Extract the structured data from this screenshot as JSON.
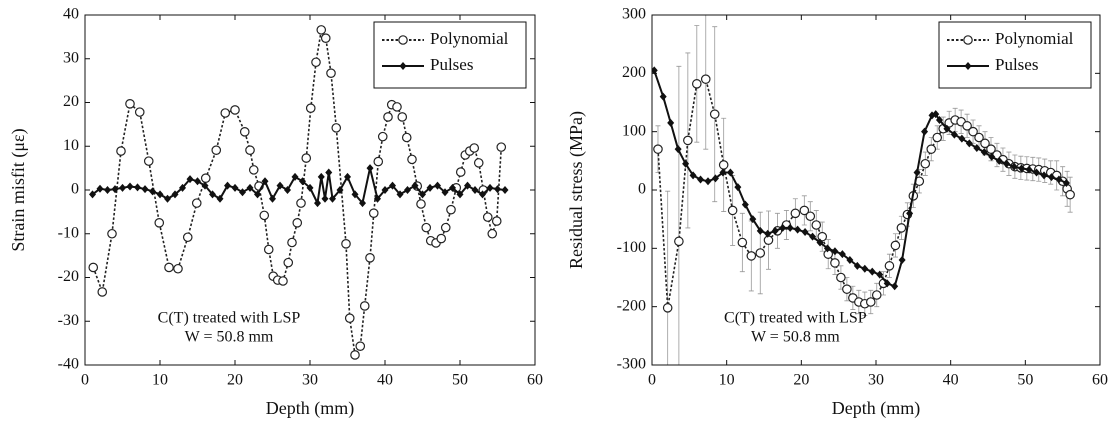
{
  "chart_data": [
    {
      "type": "line",
      "x_label": "Depth (mm)",
      "y_label": "Strain misfit (με)",
      "annotations": [
        "C(T) treated with LSP",
        "W = 50.8 mm"
      ],
      "xlim": [
        0,
        60
      ],
      "xticks": [
        0,
        10,
        20,
        30,
        40,
        50,
        60
      ],
      "ylim": [
        -40,
        40
      ],
      "yticks": [
        -40,
        -30,
        -20,
        -10,
        0,
        10,
        20,
        30,
        40
      ],
      "legend": "upper right",
      "series": [
        {
          "name": "Polynomial",
          "color": "#222222",
          "line_style": "dotted",
          "marker": "circle",
          "x": [
            1.1,
            2.3,
            3.6,
            4.8,
            6,
            7.3,
            8.5,
            9.9,
            11.2,
            12.4,
            13.7,
            14.9,
            16.1,
            17.5,
            18.7,
            20,
            21.3,
            22,
            22.5,
            23.2,
            23.9,
            24.5,
            25.1,
            25.7,
            26.4,
            27.1,
            27.6,
            28.3,
            28.8,
            29.5,
            30.1,
            30.8,
            31.5,
            32.1,
            32.8,
            33.5,
            34.8,
            35.3,
            36,
            36.7,
            37.3,
            38,
            38.5,
            39.1,
            39.7,
            40.4,
            40.9,
            41.6,
            42.3,
            42.9,
            43.6,
            44.3,
            44.8,
            45.5,
            46.1,
            46.8,
            47.5,
            48.1,
            48.8,
            49.5,
            50.1,
            50.7,
            51.3,
            51.9,
            52.5,
            53.1,
            53.7,
            54.3,
            54.9,
            55.5
          ],
          "values": [
            -17.7,
            -23.3,
            -10,
            8.9,
            19.7,
            17.8,
            6.6,
            -7.5,
            -17.7,
            -18,
            -10.8,
            -3,
            2.7,
            9.1,
            17.6,
            18.3,
            13.3,
            9.1,
            4.6,
            0.9,
            -5.8,
            -13.6,
            -19.7,
            -20.6,
            -20.8,
            -16.6,
            -12,
            -7.5,
            -3,
            7.3,
            18.7,
            29.2,
            36.6,
            34.7,
            26.7,
            14.2,
            -12.3,
            -29.3,
            -37.7,
            -35.7,
            -26.5,
            -15.5,
            -5.3,
            6.5,
            12.2,
            16.7,
            19.5,
            19,
            16.7,
            12,
            7,
            0.9,
            -3.2,
            -8.6,
            -11.6,
            -12.1,
            -11.1,
            -8.6,
            -4.5,
            0.5,
            4.1,
            8,
            8.9,
            9.6,
            6.2,
            0,
            -6.2,
            -10,
            -7.1,
            9.8
          ]
        },
        {
          "name": "Pulses",
          "color": "#111111",
          "line_style": "solid",
          "marker": "diamond",
          "x": [
            1,
            2,
            3,
            4,
            5,
            6,
            7,
            8,
            9,
            10,
            11,
            12,
            13,
            14,
            15,
            16,
            17,
            18,
            19,
            20,
            21,
            22,
            23,
            24,
            25,
            26,
            27,
            28,
            29,
            30,
            31,
            31.5,
            32,
            32.5,
            33,
            34,
            35,
            36,
            37,
            38,
            39,
            40,
            41,
            42,
            43,
            44,
            45,
            46,
            47,
            48,
            49,
            50,
            51,
            52,
            53,
            54,
            55,
            56
          ],
          "values": [
            -1,
            0.3,
            0,
            0.2,
            0.5,
            0.8,
            0.6,
            0.2,
            -0.3,
            -1,
            -2,
            -1,
            0.5,
            2.5,
            2,
            1,
            -1,
            -2,
            1,
            0.5,
            -0.5,
            0.5,
            -1,
            2,
            -2,
            1,
            0,
            3,
            2,
            0.5,
            -3,
            3,
            -2,
            4,
            -2,
            0,
            3,
            -1,
            -3,
            5,
            -2,
            0,
            1,
            -1,
            0,
            1,
            -1,
            0.5,
            1,
            -0.5,
            0.5,
            -1,
            1,
            0,
            -1,
            0.5,
            0.2,
            0
          ]
        }
      ]
    },
    {
      "type": "line",
      "x_label": "Depth (mm)",
      "y_label": "Residual stress (MPa)",
      "annotations": [
        "C(T) treated with LSP",
        "W = 50.8 mm"
      ],
      "xlim": [
        0,
        60
      ],
      "xticks": [
        0,
        10,
        20,
        30,
        40,
        50,
        60
      ],
      "ylim": [
        -300,
        300
      ],
      "yticks": [
        -300,
        -200,
        -100,
        0,
        100,
        200,
        300
      ],
      "legend": "upper right",
      "series": [
        {
          "name": "Polynomial",
          "color": "#222222",
          "line_style": "dotted",
          "marker": "circle",
          "error_color": "#999999",
          "x": [
            0.8,
            2.1,
            3.6,
            4.8,
            6,
            7.2,
            8.4,
            9.6,
            10.8,
            12.1,
            13.3,
            14.5,
            15.6,
            16.8,
            18,
            19.2,
            20.4,
            21.2,
            22,
            22.8,
            23.6,
            24.5,
            25.3,
            26.1,
            26.9,
            27.7,
            28.5,
            29.3,
            30.1,
            31,
            31.8,
            32.6,
            33.4,
            34.2,
            35,
            35.8,
            36.6,
            37.4,
            38.2,
            39,
            39.8,
            40.6,
            41.4,
            42.2,
            43,
            43.8,
            44.6,
            45.4,
            46.2,
            47,
            47.8,
            48.6,
            49.4,
            50.2,
            51,
            51.8,
            52.6,
            53.4,
            54.2,
            55,
            55.6,
            56
          ],
          "values": [
            70,
            -202,
            -88,
            85,
            182,
            190,
            130,
            43,
            -35,
            -90,
            -113,
            -108,
            -86,
            -70,
            -60,
            -40,
            -35,
            -45,
            -60,
            -80,
            -110,
            -125,
            -150,
            -170,
            -185,
            -192,
            -195,
            -192,
            -180,
            -160,
            -130,
            -95,
            -65,
            -42,
            -10,
            15,
            45,
            70,
            90,
            105,
            115,
            120,
            117,
            110,
            100,
            90,
            80,
            70,
            60,
            52,
            45,
            40,
            38,
            37,
            36,
            35,
            33,
            30,
            25,
            15,
            2,
            -8
          ],
          "errors": [
            40,
            200,
            300,
            150,
            100,
            120,
            150,
            80,
            60,
            50,
            60,
            70,
            50,
            30,
            25,
            25,
            25,
            25,
            25,
            25,
            25,
            20,
            20,
            20,
            20,
            20,
            20,
            20,
            20,
            20,
            20,
            20,
            20,
            20,
            20,
            20,
            20,
            20,
            20,
            20,
            20,
            20,
            20,
            20,
            20,
            20,
            20,
            20,
            20,
            20,
            20,
            20,
            20,
            20,
            20,
            20,
            20,
            20,
            25,
            25,
            30,
            30
          ]
        },
        {
          "name": "Pulses",
          "color": "#111111",
          "line_style": "solid",
          "marker": "diamond",
          "x": [
            0.3,
            1.5,
            2.5,
            3.5,
            4.5,
            5.5,
            6.5,
            7.5,
            8.5,
            9.5,
            10.5,
            11.5,
            12.5,
            13.5,
            14.5,
            15.5,
            16.5,
            17.5,
            18.5,
            19.5,
            20.5,
            21.5,
            22.5,
            23.5,
            24.5,
            25.5,
            26.5,
            27.5,
            28.5,
            29.5,
            30.5,
            31.5,
            32.5,
            33.5,
            34.5,
            35.5,
            36.5,
            37.5,
            38,
            38.5,
            39.5,
            40.5,
            41.5,
            42.5,
            43.5,
            44.5,
            45.5,
            46.5,
            47.5,
            48.5,
            49.5,
            50.5,
            51.5,
            52.5,
            53.5,
            54.5,
            55.5
          ],
          "values": [
            205,
            160,
            115,
            70,
            45,
            25,
            18,
            15,
            20,
            30,
            30,
            5,
            -25,
            -50,
            -70,
            -75,
            -70,
            -65,
            -65,
            -68,
            -72,
            -80,
            -90,
            -100,
            -105,
            -110,
            -120,
            -130,
            -135,
            -140,
            -145,
            -160,
            -165,
            -120,
            -40,
            30,
            100,
            128,
            130,
            120,
            105,
            95,
            88,
            80,
            72,
            65,
            57,
            50,
            45,
            40,
            37,
            35,
            30,
            25,
            22,
            18,
            12
          ]
        }
      ]
    }
  ]
}
